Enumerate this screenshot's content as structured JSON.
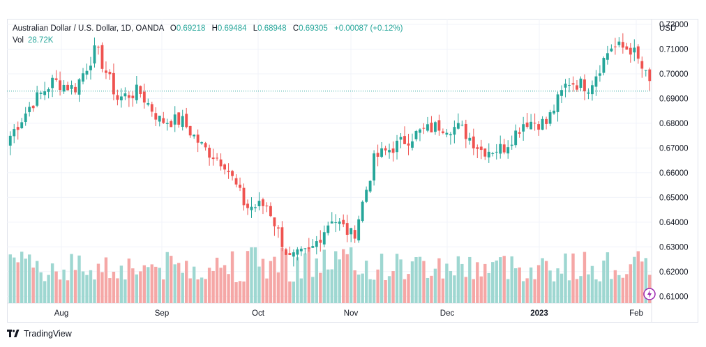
{
  "header": {
    "symbol": "Australian Dollar / U.S. Dollar, 1D, OANDA",
    "o_label": "O",
    "o": "0.69218",
    "h_label": "H",
    "h": "0.69484",
    "l_label": "L",
    "l": "0.68948",
    "c_label": "C",
    "c": "0.69305",
    "change": "+0.00087 (+0.12%)",
    "vol_label": "Vol",
    "vol": "28.72K"
  },
  "axis": {
    "currency": "USD",
    "y_ticks": [
      "0.72000",
      "0.71000",
      "0.70000",
      "0.69000",
      "0.68000",
      "0.67000",
      "0.66000",
      "0.65000",
      "0.64000",
      "0.63000",
      "0.62000",
      "0.61000"
    ],
    "x_ticks": [
      "Aug",
      "Sep",
      "Oct",
      "Nov",
      "Dec",
      "2023",
      "Feb"
    ]
  },
  "footer": {
    "brand": "TradingView"
  },
  "colors": {
    "up": "#26a69a",
    "down": "#ef5350",
    "vol_up": "#9ed7d1",
    "vol_down": "#f5a7a6",
    "last_line": "#26a69a"
  },
  "chart_data": {
    "type": "candlestick",
    "ylim": [
      0.605,
      0.72
    ],
    "last_price_line": 0.693,
    "anchors": [
      {
        "x": "Jul 15",
        "close": 0.675
      },
      {
        "x": "Jul 21",
        "close": 0.688
      },
      {
        "x": "Jul 28",
        "close": 0.697
      },
      {
        "x": "Aug 5",
        "close": 0.694
      },
      {
        "x": "Aug 11",
        "close": 0.71
      },
      {
        "x": "Aug 19",
        "close": 0.69
      },
      {
        "x": "Aug 26",
        "close": 0.693
      },
      {
        "x": "Sep 2",
        "close": 0.681
      },
      {
        "x": "Sep 9",
        "close": 0.681
      },
      {
        "x": "Sep 16",
        "close": 0.67
      },
      {
        "x": "Sep 23",
        "close": 0.664
      },
      {
        "x": "Sep 30",
        "close": 0.646
      },
      {
        "x": "Oct 7",
        "close": 0.647
      },
      {
        "x": "Oct 14",
        "close": 0.625
      },
      {
        "x": "Oct 21",
        "close": 0.628
      },
      {
        "x": "Oct 28",
        "close": 0.642
      },
      {
        "x": "Nov 4",
        "close": 0.634
      },
      {
        "x": "Nov 11",
        "close": 0.666
      },
      {
        "x": "Nov 18",
        "close": 0.671
      },
      {
        "x": "Nov 25",
        "close": 0.676
      },
      {
        "x": "Dec 2",
        "close": 0.679
      },
      {
        "x": "Dec 9",
        "close": 0.678
      },
      {
        "x": "Dec 16",
        "close": 0.669
      },
      {
        "x": "Dec 23",
        "close": 0.67
      },
      {
        "x": "Dec 30",
        "close": 0.681
      },
      {
        "x": "Jan 6",
        "close": 0.68
      },
      {
        "x": "Jan 13",
        "close": 0.697
      },
      {
        "x": "Jan 20",
        "close": 0.695
      },
      {
        "x": "Jan 27",
        "close": 0.711
      },
      {
        "x": "Feb 1",
        "close": 0.71
      },
      {
        "x": "Feb 3",
        "close": 0.693
      }
    ],
    "volume": {
      "min": 20000,
      "max": 35000
    }
  }
}
